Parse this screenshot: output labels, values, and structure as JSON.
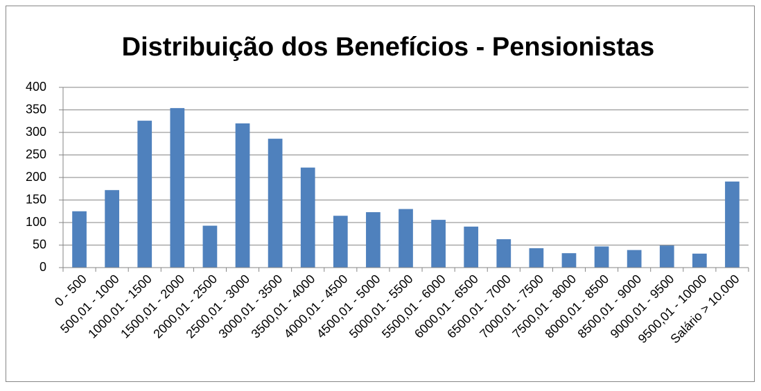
{
  "chart_data": {
    "type": "bar",
    "title": "Distribuição dos Benefícios - Pensionistas",
    "categories": [
      "0 - 500",
      "500,01 - 1000",
      "1000,01 - 1500",
      "1500,01 - 2000",
      "2000,01 - 2500",
      "2500,01 - 3000",
      "3000,01 - 3500",
      "3500,01 - 4000",
      "4000,01 - 4500",
      "4500,01 - 5000",
      "5000,01 - 5500",
      "5500,01 - 6000",
      "6000,01 - 6500",
      "6500,01 - 7000",
      "7000,01 - 7500",
      "7500,01 - 8000",
      "8000,01 - 8500",
      "8500,01 - 9000",
      "9000,01 - 9500",
      "9500,01 - 10000",
      "Salário > 10.000"
    ],
    "values": [
      125,
      172,
      326,
      354,
      93,
      320,
      286,
      222,
      115,
      123,
      130,
      106,
      91,
      63,
      43,
      32,
      47,
      39,
      49,
      31,
      191
    ],
    "color": "#4f81bd",
    "ylim": [
      0,
      400
    ],
    "yticks": [
      0,
      50,
      100,
      150,
      200,
      250,
      300,
      350,
      400
    ],
    "grid": true
  }
}
